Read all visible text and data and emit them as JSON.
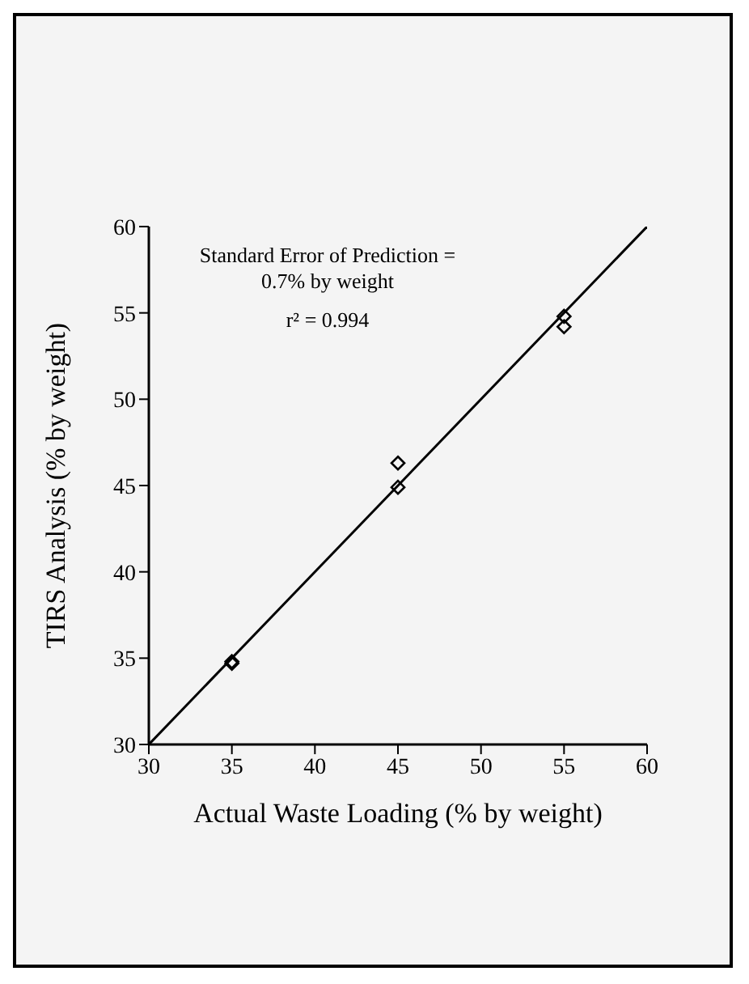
{
  "chart_data": {
    "type": "scatter",
    "xlabel": "Actual Waste Loading (% by weight)",
    "ylabel": "TIRS Analysis (% by weight)",
    "xlim": [
      30,
      60
    ],
    "ylim": [
      30,
      60
    ],
    "xticks": [
      30,
      35,
      40,
      45,
      50,
      55,
      60
    ],
    "yticks": [
      30,
      35,
      40,
      45,
      50,
      55,
      60
    ],
    "annotations": [
      "Standard Error of Prediction = 0.7% by weight",
      "r² = 0.994"
    ],
    "series": [
      {
        "x": [
          35,
          35,
          45,
          45,
          55,
          55
        ],
        "values": [
          34.8,
          34.7,
          46.3,
          44.9,
          54.8,
          54.2
        ],
        "color": "#000000",
        "marker": "diamond"
      },
      {
        "type": "line",
        "x": [
          30,
          60
        ],
        "values": [
          30,
          60
        ],
        "color": "#000000"
      }
    ]
  }
}
